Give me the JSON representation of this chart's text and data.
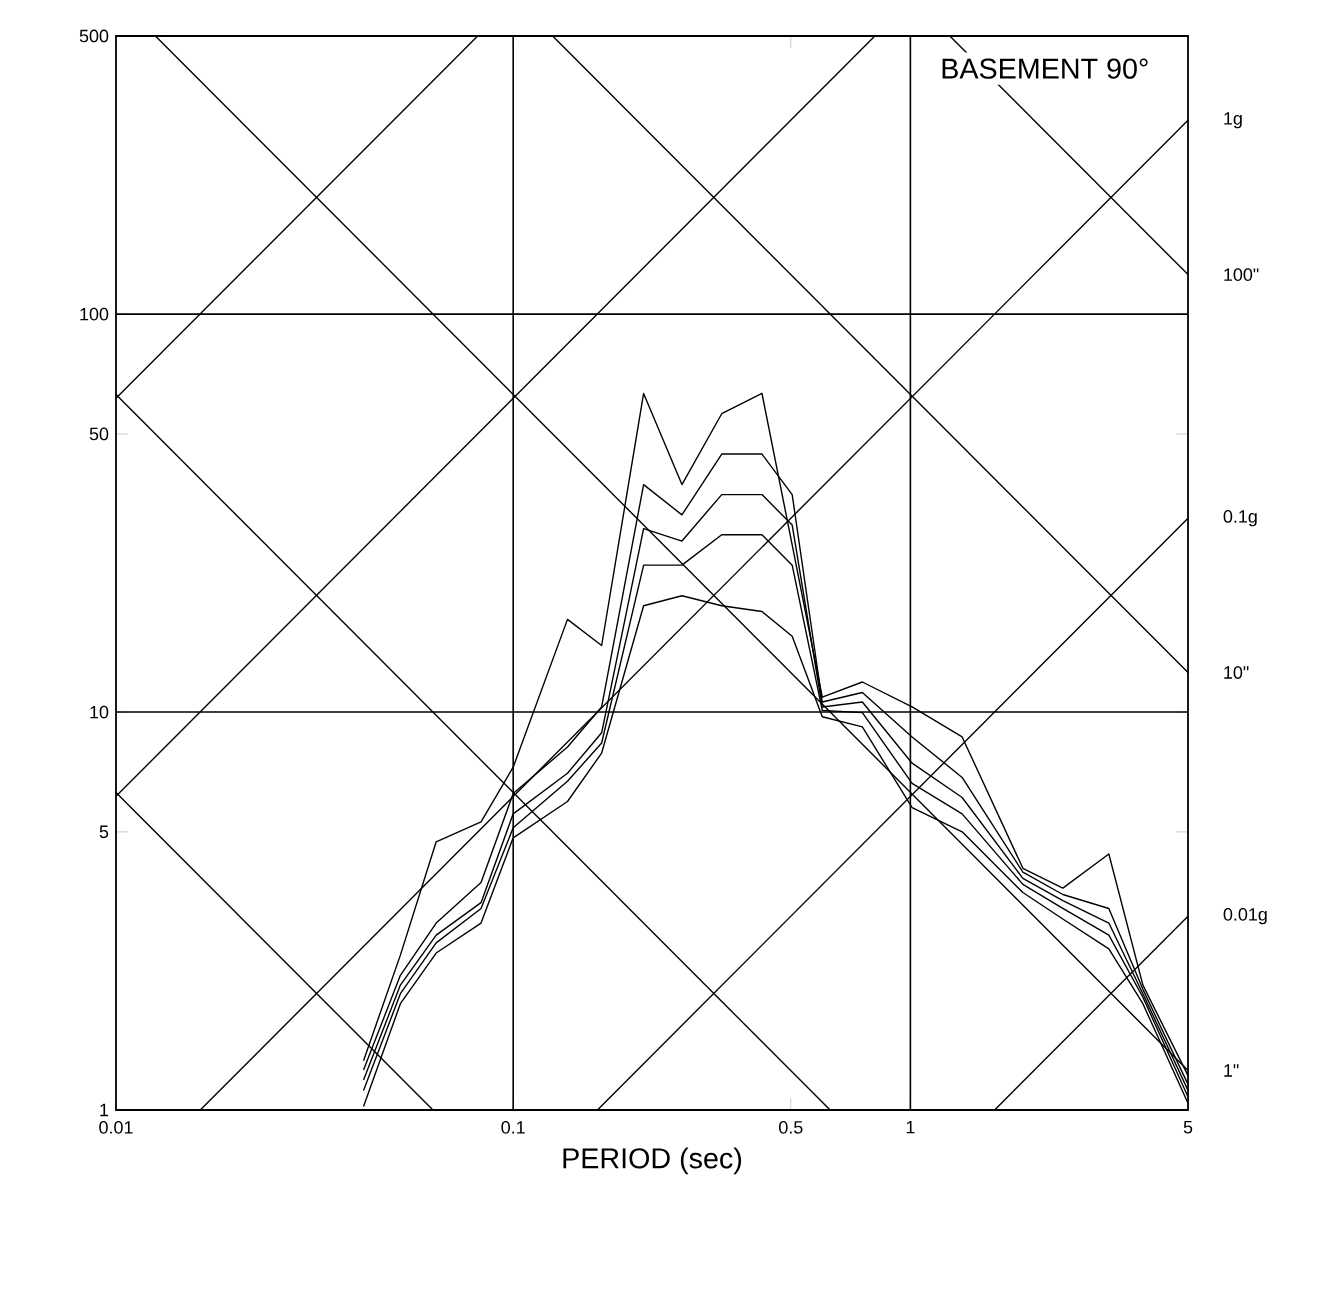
{
  "chart_data": {
    "type": "line",
    "title": "BASEMENT 90°",
    "xlabel": "PERIOD (sec)",
    "log": "xy",
    "xlim": [
      0.01,
      5
    ],
    "ylim": [
      1,
      500
    ],
    "xticks": [
      0.01,
      0.1,
      0.5,
      1,
      5
    ],
    "yticks": [
      1,
      5,
      10,
      50,
      100,
      500
    ],
    "marker": "none",
    "line_style": "solid",
    "x": [
      0.042,
      0.052,
      0.064,
      0.083,
      0.1,
      0.137,
      0.167,
      0.213,
      0.266,
      0.335,
      0.423,
      0.504,
      0.6,
      0.757,
      1.01,
      1.35,
      1.92,
      2.42,
      3.16,
      3.85,
      5
    ],
    "series": [
      {
        "color": "#000000",
        "values": [
          1.33,
          2.45,
          4.72,
          5.3,
          7.27,
          17.1,
          14.7,
          63.2,
          37.3,
          56.2,
          63.2,
          26.3,
          10.9,
          11.9,
          10.3,
          8.66,
          4.05,
          3.61,
          4.4,
          2.06,
          1.22
        ]
      },
      {
        "color": "#000000",
        "values": [
          1.26,
          2.18,
          2.95,
          3.73,
          6.24,
          8.17,
          10.3,
          37.3,
          31.3,
          44.5,
          44.5,
          35.2,
          10.6,
          11.2,
          8.66,
          6.85,
          3.96,
          3.48,
          3.21,
          2.01,
          1.16
        ]
      },
      {
        "color": "#000000",
        "values": [
          1.19,
          2.06,
          2.75,
          3.32,
          5.55,
          7.02,
          8.87,
          28.9,
          26.9,
          35.2,
          35.2,
          29.5,
          10.3,
          10.6,
          7.44,
          6.1,
          3.82,
          3.36,
          2.95,
          1.96,
          1.12
        ]
      },
      {
        "color": "#000000",
        "values": [
          1.12,
          1.96,
          2.63,
          3.21,
          5.12,
          6.7,
          8.36,
          23.4,
          23.4,
          27.9,
          27.9,
          23.4,
          10.1,
          9.97,
          6.62,
          5.55,
          3.69,
          3.21,
          2.75,
          1.92,
          1.08
        ]
      },
      {
        "color": "#000000",
        "values": [
          1.02,
          1.85,
          2.48,
          2.95,
          4.83,
          5.96,
          7.89,
          18.5,
          19.6,
          18.5,
          17.9,
          15.5,
          9.73,
          9.18,
          5.75,
          5.0,
          3.52,
          3.02,
          2.54,
          1.85,
          1.04
        ]
      },
      {
        "color": "#000000",
        "x": [
          0.01,
          0.0814
        ],
        "values": [
          61.45,
          500
        ]
      },
      {
        "color": "#000000",
        "x": [
          0.01,
          0.814
        ],
        "values": [
          6.145,
          500
        ]
      },
      {
        "name": "1g",
        "color": "#000000",
        "x": [
          0.0163,
          5
        ],
        "values": [
          1,
          307
        ]
      },
      {
        "name": "0.1g",
        "color": "#000000",
        "x": [
          0.163,
          5
        ],
        "values": [
          1,
          30.7
        ]
      },
      {
        "name": "0.01g",
        "color": "#000000",
        "x": [
          1.63,
          5
        ],
        "values": [
          1,
          3.07
        ]
      },
      {
        "color": "#000000",
        "x": [
          0.01,
          0.0628
        ],
        "values": [
          6.28,
          1
        ]
      },
      {
        "color": "#000000",
        "x": [
          0.01,
          0.628
        ],
        "values": [
          62.8,
          1
        ]
      },
      {
        "name": "1\"",
        "color": "#000000",
        "x": [
          0.01257,
          5
        ],
        "values": [
          500,
          1.257
        ]
      },
      {
        "name": "10\"",
        "color": "#000000",
        "x": [
          0.1257,
          5
        ],
        "values": [
          500,
          12.57
        ]
      },
      {
        "name": "100\"",
        "color": "#000000",
        "x": [
          1.257,
          5
        ],
        "values": [
          500,
          125.7
        ]
      }
    ],
    "ref_lines": [
      {
        "axis": "x",
        "value": 0.1
      },
      {
        "axis": "x",
        "value": 1
      },
      {
        "axis": "y",
        "value": 10
      },
      {
        "axis": "y",
        "value": 100
      }
    ]
  }
}
